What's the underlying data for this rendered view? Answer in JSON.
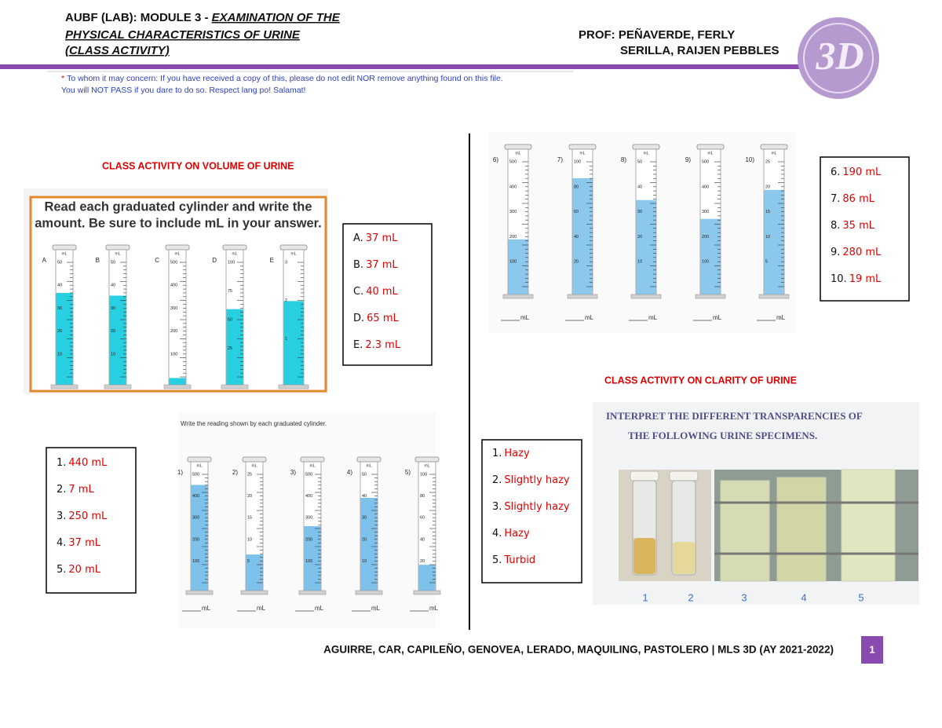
{
  "header": {
    "title_plain": "AUBF (LAB): MODULE 3 - ",
    "title_italic": "EXAMINATION OF THE",
    "title_line2": "PHYSICAL CHARACTERISTICS OF URINE",
    "title_line3": "(CLASS ACTIVITY)",
    "prof": "PROF: PEÑAVERDE, FERLY",
    "student": "SERILLA, RAIJEN PEBBLES",
    "logo_text": "3D",
    "notice_mark": "*",
    "notice_line1": "To whom it may concern: If you have received a copy of this, please do not edit NOR remove anything found on this file.",
    "notice_line2": "You will NOT PASS if you dare to do so. Respect lang po! Salamat!"
  },
  "volume_section": {
    "title": "CLASS ACTIVITY ON VOLUME OF URINE",
    "worksheet": {
      "instruction_line1": "Read each graduated cylinder and write the",
      "instruction_line2": "amount.  Be sure to include mL in your answer.",
      "unit": "mL",
      "cylinders": [
        {
          "label": "A",
          "ticks": [
            "50",
            "40",
            "30",
            "20",
            "10"
          ]
        },
        {
          "label": "B",
          "ticks": [
            "50",
            "40",
            "30",
            "20",
            "10"
          ]
        },
        {
          "label": "C",
          "ticks": [
            "500",
            "400",
            "300",
            "200",
            "100"
          ]
        },
        {
          "label": "D",
          "ticks": [
            "100",
            "75",
            "50",
            "25"
          ]
        },
        {
          "label": "E",
          "ticks": [
            "3",
            "2",
            "1"
          ]
        }
      ]
    },
    "answers": [
      {
        "label": "A.",
        "value": "37 mL"
      },
      {
        "label": "B.",
        "value": "37 mL"
      },
      {
        "label": "C.",
        "value": "40 mL"
      },
      {
        "label": "D.",
        "value": "65 mL"
      },
      {
        "label": "E.",
        "value": "2.3 mL"
      }
    ]
  },
  "cylinders_1_5": {
    "instruction": "Write the reading shown by each graduated cylinder.",
    "unit": "mL",
    "cylinders": [
      {
        "label": "1)",
        "ticks": [
          "500",
          "400",
          "300",
          "200",
          "100"
        ]
      },
      {
        "label": "2)",
        "ticks": [
          "25",
          "20",
          "15",
          "10",
          "5"
        ]
      },
      {
        "label": "3)",
        "ticks": [
          "500",
          "400",
          "300",
          "200",
          "100"
        ]
      },
      {
        "label": "4)",
        "ticks": [
          "50",
          "40",
          "30",
          "20",
          "10"
        ]
      },
      {
        "label": "5)",
        "ticks": [
          "100",
          "80",
          "60",
          "40",
          "20"
        ]
      }
    ],
    "answers": [
      {
        "label": "1.",
        "value": "440 mL"
      },
      {
        "label": "2.",
        "value": "7 mL"
      },
      {
        "label": "3.",
        "value": "250 mL"
      },
      {
        "label": "4.",
        "value": "37 mL"
      },
      {
        "label": "5.",
        "value": "20 mL"
      }
    ]
  },
  "cylinders_6_10": {
    "unit": "mL",
    "cylinders": [
      {
        "label": "6)",
        "ticks": [
          "500",
          "400",
          "300",
          "200",
          "100"
        ]
      },
      {
        "label": "7)",
        "ticks": [
          "100",
          "80",
          "60",
          "40",
          "20"
        ]
      },
      {
        "label": "8)",
        "ticks": [
          "50",
          "40",
          "30",
          "20",
          "10"
        ]
      },
      {
        "label": "9)",
        "ticks": [
          "500",
          "400",
          "300",
          "200",
          "100"
        ]
      },
      {
        "label": "10)",
        "ticks": [
          "25",
          "20",
          "15",
          "10",
          "5"
        ]
      }
    ],
    "answers": [
      {
        "label": "6.",
        "value": "190 mL"
      },
      {
        "label": "7.",
        "value": "86 mL"
      },
      {
        "label": "8.",
        "value": "35 mL"
      },
      {
        "label": "9.",
        "value": "280 mL"
      },
      {
        "label": "10.",
        "value": "19 mL"
      }
    ]
  },
  "clarity_section": {
    "title": "CLASS ACTIVITY ON CLARITY OF URINE",
    "heading_line1": "INTERPRET THE DIFFERENT TRANSPARENCIES OF",
    "heading_line2": "THE FOLLOWING URINE SPECIMENS.",
    "specimen_labels": [
      "1",
      "2",
      "3",
      "4",
      "5"
    ],
    "answers": [
      {
        "label": "1.",
        "value": "Hazy"
      },
      {
        "label": "2.",
        "value": "Slightly hazy"
      },
      {
        "label": "3.",
        "value": "Slightly hazy"
      },
      {
        "label": "4.",
        "value": "Hazy"
      },
      {
        "label": "5.",
        "value": "Turbid"
      }
    ]
  },
  "footer": {
    "authors": "AGUIRRE, CAR, CAPILEÑO, GENOVEA, LERADO, MAQUILING, PASTOLERO | MLS 3D (AY 2021-2022)",
    "page": "1"
  }
}
